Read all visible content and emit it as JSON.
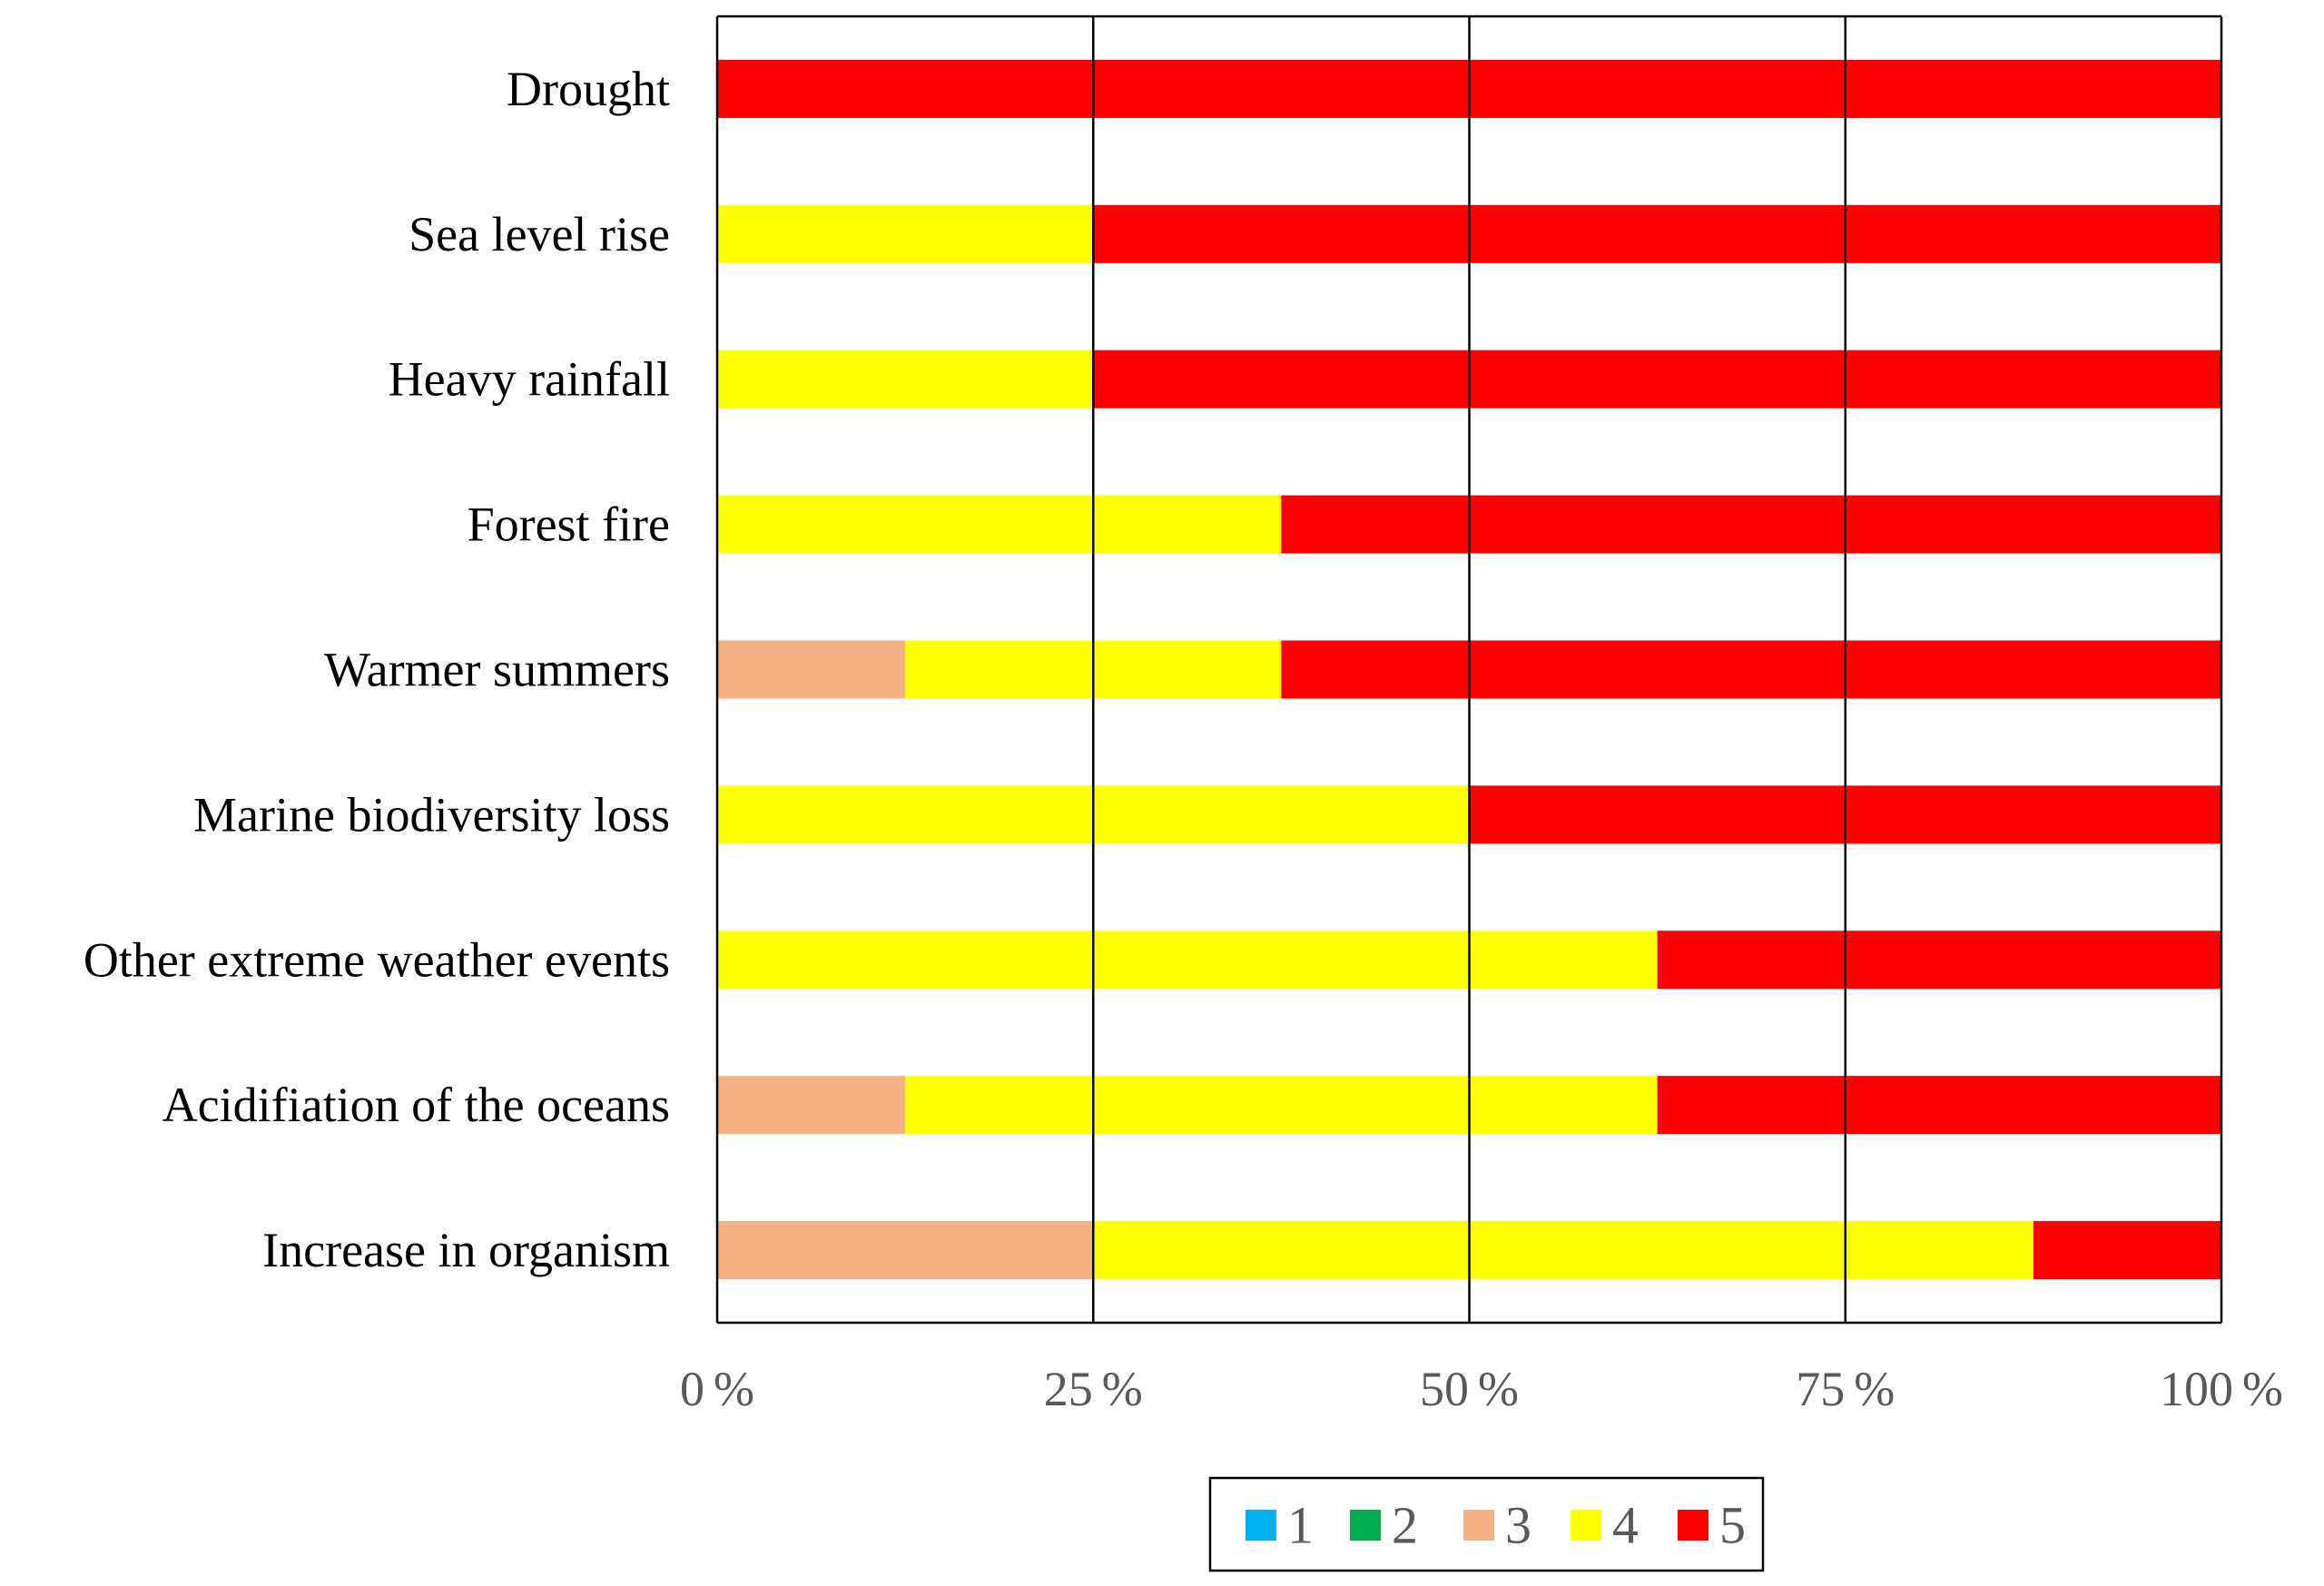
{
  "chart_data": {
    "type": "bar",
    "orientation": "horizontal",
    "stacked": "percent",
    "title": "",
    "xlabel": "",
    "ylabel": "",
    "xlim": [
      0,
      100
    ],
    "grid": "vertical",
    "legend_position": "bottom-center",
    "categories": [
      "Drought",
      "Sea level rise",
      "Heavy rainfall",
      "Forest fire",
      "Warmer summers",
      "Marine biodiversity loss",
      "Other extreme weather events",
      "Acidifiation of the oceans",
      "Increase in organism"
    ],
    "ticks": [
      {
        "value": 0,
        "num": "0",
        "unit": "%"
      },
      {
        "value": 25,
        "num": "25",
        "unit": "%"
      },
      {
        "value": 50,
        "num": "50",
        "unit": "%"
      },
      {
        "value": 75,
        "num": "75",
        "unit": "%"
      },
      {
        "value": 100,
        "num": "100",
        "unit": "%"
      }
    ],
    "series": [
      {
        "name": "1",
        "color": "#00B0F0",
        "values": [
          0,
          0,
          0,
          0,
          0,
          0,
          0,
          0,
          0
        ]
      },
      {
        "name": "2",
        "color": "#00B050",
        "values": [
          0,
          0,
          0,
          0,
          0,
          0,
          0,
          0,
          0
        ]
      },
      {
        "name": "3",
        "color": "#F4B183",
        "values": [
          0,
          0,
          0,
          0,
          12.5,
          0,
          0,
          12.5,
          25
        ]
      },
      {
        "name": "4",
        "color": "#FFFF00",
        "values": [
          0,
          25,
          25,
          37.5,
          25,
          50,
          62.5,
          50,
          62.5
        ]
      },
      {
        "name": "5",
        "color": "#FF0000",
        "values": [
          100,
          75,
          75,
          62.5,
          62.5,
          50,
          37.5,
          37.5,
          12.5
        ]
      }
    ]
  }
}
